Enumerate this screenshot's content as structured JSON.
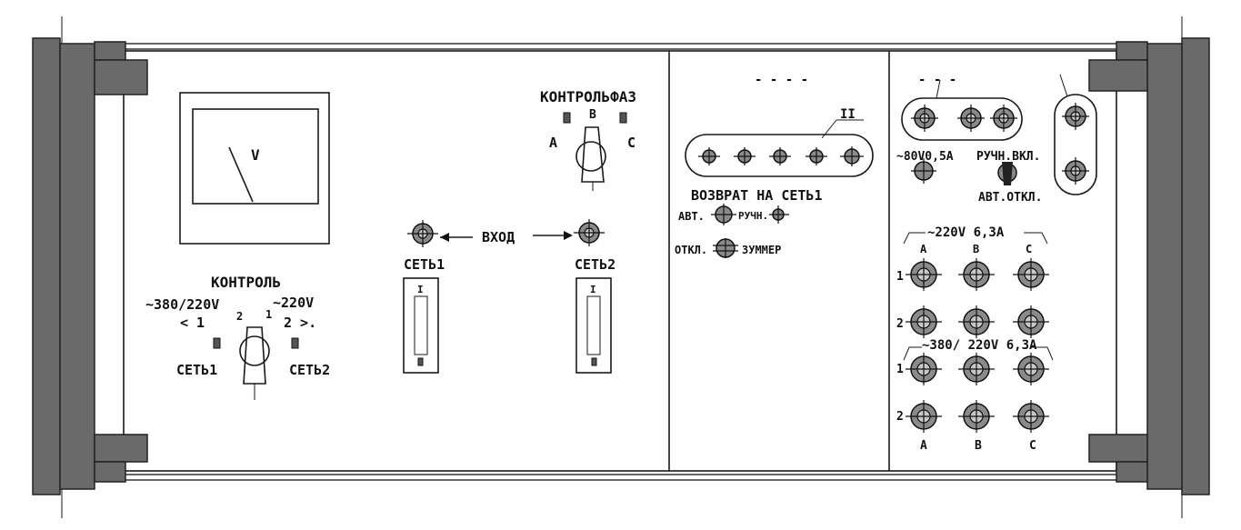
{
  "meter": {
    "unit": "V"
  },
  "control": {
    "title": "КОНТРОЛЬ",
    "left_voltage": "~380/220V",
    "right_voltage": "~220V",
    "pos_1": "1",
    "pos_2": "2",
    "bracket_left": "< 1",
    "bracket_right": "2 >.",
    "left_network": "СЕТЬ1",
    "right_network": "СЕТЬ2"
  },
  "phase_control": {
    "title": "КОНТРОЛЬФАЗ",
    "phase_b": "В",
    "phase_a": "А",
    "phase_c": "С"
  },
  "input": {
    "label": "ВХОД",
    "left_network": "СЕТЬ1",
    "right_network": "СЕТЬ2",
    "fuse_mark": "I"
  },
  "middle": {
    "top_marks": "- - - -",
    "group_label": "II",
    "return_label": "ВОЗВРАТ НА СЕТЬ1",
    "auto_label": "АВТ.",
    "manual_label": "РУЧН.",
    "off_label": "ОТКЛ.",
    "buzzer_label": "ЗУММЕР"
  },
  "right": {
    "top_marks": "-   -   -",
    "low_voltage": "~80V0,5А",
    "manual_on": "РУЧН.ВКЛ.",
    "auto_off": "АВТ.ОТКЛ.",
    "bus_220": "~220V 6,3А",
    "bus_380": "~380/ 220V 6,3А",
    "phase_a": "А",
    "phase_b": "В",
    "phase_c": "С",
    "row_1": "1",
    "row_2": "2"
  }
}
